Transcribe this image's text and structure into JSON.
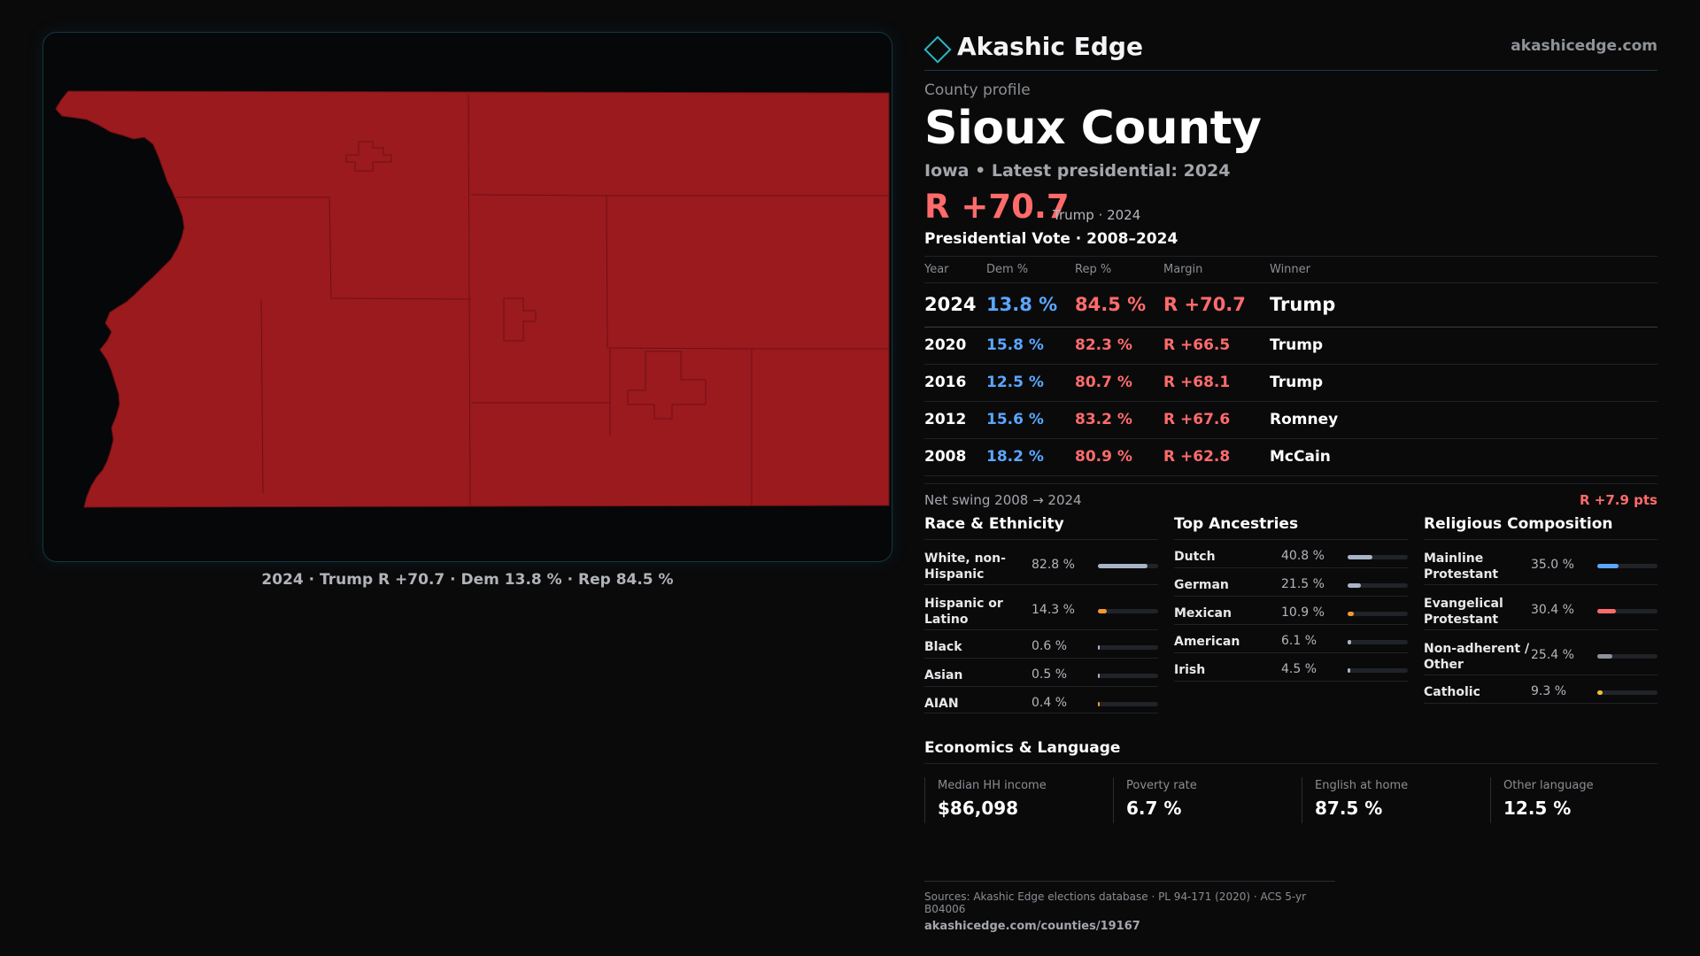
{
  "brand": {
    "name": "Akashic Edge",
    "url": "akashicedge.com"
  },
  "profile": {
    "label": "County profile",
    "county": "Sioux County",
    "state_line": "Iowa • Latest presidential: 2024",
    "margin": "R +70.7",
    "margin_meta": "Trump · 2024"
  },
  "map": {
    "caption": "2024 · Trump R +70.7 · Dem 13.8 % · Rep 84.5 %",
    "fill_color": "#9b1a1e"
  },
  "votes": {
    "title": "Presidential Vote · 2008–2024",
    "headers": [
      "Year",
      "Dem %",
      "Rep %",
      "Margin",
      "Winner"
    ],
    "rows": [
      {
        "year": "2024",
        "dem": "13.8 %",
        "rep": "84.5 %",
        "margin": "R +70.7",
        "winner": "Trump"
      },
      {
        "year": "2020",
        "dem": "15.8 %",
        "rep": "82.3 %",
        "margin": "R +66.5",
        "winner": "Trump"
      },
      {
        "year": "2016",
        "dem": "12.5 %",
        "rep": "80.7 %",
        "margin": "R +68.1",
        "winner": "Trump"
      },
      {
        "year": "2012",
        "dem": "15.6 %",
        "rep": "83.2 %",
        "margin": "R +67.6",
        "winner": "Romney"
      },
      {
        "year": "2008",
        "dem": "18.2 %",
        "rep": "80.9 %",
        "margin": "R +62.8",
        "winner": "McCain"
      }
    ],
    "swing_label": "Net swing 2008 → 2024",
    "swing_value": "R +7.9 pts"
  },
  "race": {
    "title": "Race & Ethnicity",
    "items": [
      {
        "label": "White, non-Hispanic",
        "value": "82.8 %",
        "pct": 82.8,
        "color": "#a9b4c8"
      },
      {
        "label": "Hispanic or Latino",
        "value": "14.3 %",
        "pct": 14.3,
        "color": "#f29a2e"
      },
      {
        "label": "Black",
        "value": "0.6 %",
        "pct": 0.6,
        "color": "#a9b4c8"
      },
      {
        "label": "Asian",
        "value": "0.5 %",
        "pct": 0.5,
        "color": "#a9b4c8"
      },
      {
        "label": "AIAN",
        "value": "0.4 %",
        "pct": 0.4,
        "color": "#f29a2e"
      }
    ]
  },
  "ancestry": {
    "title": "Top Ancestries",
    "items": [
      {
        "label": "Dutch",
        "value": "40.8 %",
        "pct": 40.8,
        "color": "#a9b4c8"
      },
      {
        "label": "German",
        "value": "21.5 %",
        "pct": 21.5,
        "color": "#a9b4c8"
      },
      {
        "label": "Mexican",
        "value": "10.9 %",
        "pct": 10.9,
        "color": "#f29a2e"
      },
      {
        "label": "American",
        "value": "6.1 %",
        "pct": 6.1,
        "color": "#a9b4c8"
      },
      {
        "label": "Irish",
        "value": "4.5 %",
        "pct": 4.5,
        "color": "#a9b4c8"
      }
    ]
  },
  "religion": {
    "title": "Religious Composition",
    "items": [
      {
        "label": "Mainline Protestant",
        "value": "35.0 %",
        "pct": 35.0,
        "color": "#5aa7ff"
      },
      {
        "label": "Evangelical Protestant",
        "value": "30.4 %",
        "pct": 30.4,
        "color": "#ff6b6b"
      },
      {
        "label": "Non-adherent / Other",
        "value": "25.4 %",
        "pct": 25.4,
        "color": "#8d929a"
      },
      {
        "label": "Catholic",
        "value": "9.3 %",
        "pct": 9.3,
        "color": "#f2c02e"
      }
    ]
  },
  "economics": {
    "title": "Economics & Language",
    "items": [
      {
        "label": "Median HH income",
        "value": "$86,098"
      },
      {
        "label": "Poverty rate",
        "value": "6.7 %"
      },
      {
        "label": "English at home",
        "value": "87.5 %"
      },
      {
        "label": "Other language",
        "value": "12.5 %"
      }
    ]
  },
  "sources": {
    "line": "Sources: Akashic Edge elections database · PL 94-171 (2020) · ACS 5-yr B04006",
    "url": "akashicedge.com/counties/19167"
  }
}
